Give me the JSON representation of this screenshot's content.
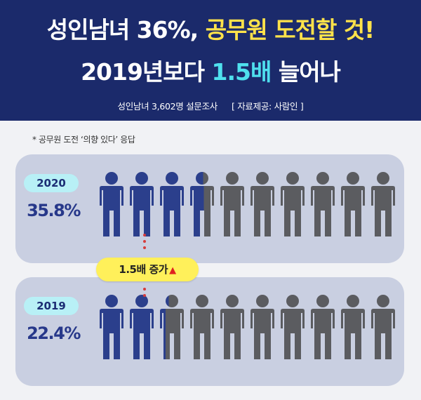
{
  "header": {
    "title_line1_a": "성인남녀 36%,",
    "title_line1_b": "공무원 도전할 것!",
    "title_line2_a": "2019년보다",
    "title_line2_b": "1.5배",
    "title_line2_c": "늘어나",
    "survey_info": "성인남녀 3,602명 설문조사",
    "source": "[ 자료제공: 사람인 ]"
  },
  "note": "* 공무원 도전 ‘의향 있다’ 응답",
  "badge": {
    "label": "1.5배 증가",
    "arrow": "▲"
  },
  "colors": {
    "highlighted": "#2b3f8c",
    "base": "#5b5c60",
    "header_bg": "#1b2a6b",
    "panel_bg": "#c9cfe1"
  },
  "icons": {
    "person": "person-icon"
  },
  "chart_data": {
    "type": "pictograph",
    "unit_icons_per_row": 10,
    "rows": [
      {
        "year": "2020",
        "value_label": "35.8%",
        "value": 35.8
      },
      {
        "year": "2019",
        "value_label": "22.4%",
        "value": 22.4
      }
    ]
  }
}
